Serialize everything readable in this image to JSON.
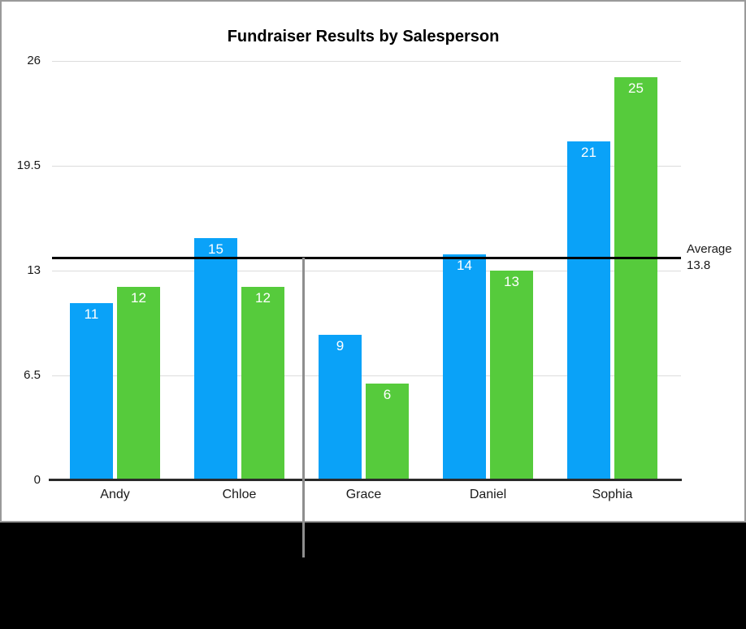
{
  "figure": {
    "background": "#000000",
    "card_background": "#ffffff",
    "card_border_color": "#9a9a9a"
  },
  "chart_data": {
    "type": "bar",
    "title": "Fundraiser Results by Salesperson",
    "categories": [
      "Andy",
      "Chloe",
      "Grace",
      "Daniel",
      "Sophia"
    ],
    "series": [
      {
        "name": "series_1",
        "color": "#0aa2f8",
        "values": [
          11,
          15,
          9,
          14,
          21
        ]
      },
      {
        "name": "series_2",
        "color": "#56cb3c",
        "values": [
          12,
          12,
          6,
          13,
          25
        ]
      }
    ],
    "ylim": [
      0,
      26
    ],
    "yticks": [
      0,
      6.5,
      13,
      19.5,
      26
    ],
    "ytick_labels": [
      "0",
      "6.5",
      "13",
      "19.5",
      "26"
    ],
    "grid": true,
    "gridline_color": "#dcdcdc",
    "axis_line_color": "#2a2a2a",
    "legend": "none",
    "data_labels": {
      "position": "inside-top",
      "color": "#ffffff"
    },
    "average_line": {
      "value": 13.8,
      "label": "Average",
      "value_text": "13.8",
      "color": "#000000"
    }
  },
  "callout": {
    "color": "#8e8e8e"
  }
}
